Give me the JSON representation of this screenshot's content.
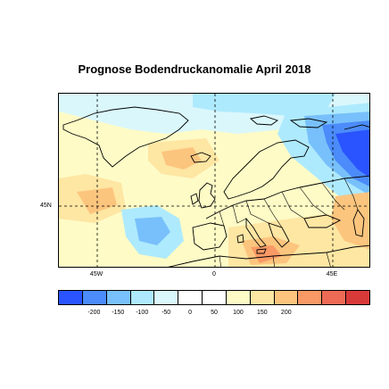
{
  "map": {
    "title": "Prognose Bodendruckanomalie April 2018",
    "lat_labels": [
      "45N"
    ],
    "lon_labels": [
      "45W",
      "0",
      "45E"
    ],
    "colorbar": {
      "colors": [
        "#2a54ff",
        "#4b8bfa",
        "#78c0fb",
        "#aeeafd",
        "#daf7fc",
        "#ffffff",
        "#ffffff",
        "#fefbc6",
        "#fee6a3",
        "#fcc57e",
        "#f99a66",
        "#ed6a55",
        "#d83a3a"
      ],
      "tick_labels": [
        "-200",
        "-150",
        "-100",
        "-50",
        "0",
        "50",
        "100",
        "150",
        "200"
      ]
    },
    "anomaly_regions": [
      {
        "region": "Greenland / Labrador Sea",
        "level": "weak positive"
      },
      {
        "region": "Central North Atlantic",
        "level": "positive (+50 to +100)"
      },
      {
        "region": "Mid Atlantic west of Iberia",
        "level": "negative (-50 to -100)"
      },
      {
        "region": "North-eastern Europe / Western Russia",
        "level": "strong negative (below -150)"
      },
      {
        "region": "Mediterranean / North Africa",
        "level": "positive (+100 to +150)"
      }
    ]
  }
}
